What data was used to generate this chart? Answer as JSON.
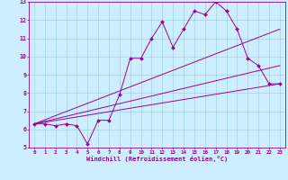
{
  "xlabel": "Windchill (Refroidissement éolien,°C)",
  "xlim": [
    -0.5,
    23.5
  ],
  "ylim": [
    5,
    13
  ],
  "xticks": [
    0,
    1,
    2,
    3,
    4,
    5,
    6,
    7,
    8,
    9,
    10,
    11,
    12,
    13,
    14,
    15,
    16,
    17,
    18,
    19,
    20,
    21,
    22,
    23
  ],
  "yticks": [
    5,
    6,
    7,
    8,
    9,
    10,
    11,
    12,
    13
  ],
  "background_color": "#cceeff",
  "line_color": "#990099",
  "grid_color": "#99cccc",
  "lines": [
    {
      "x": [
        0,
        1,
        2,
        3,
        4,
        5,
        6,
        7,
        8,
        9,
        10,
        11,
        12,
        13,
        14,
        15,
        16,
        17,
        18,
        19,
        20,
        21,
        22,
        23
      ],
      "y": [
        6.3,
        6.3,
        6.2,
        6.3,
        6.2,
        5.2,
        6.5,
        6.5,
        7.9,
        9.9,
        9.9,
        11.0,
        11.9,
        10.5,
        11.5,
        12.5,
        12.3,
        13.0,
        12.5,
        11.5,
        9.9,
        9.5,
        8.5,
        8.5
      ],
      "marker": true
    },
    {
      "x": [
        0,
        23
      ],
      "y": [
        6.3,
        8.5
      ],
      "marker": false
    },
    {
      "x": [
        0,
        23
      ],
      "y": [
        6.3,
        9.5
      ],
      "marker": false
    },
    {
      "x": [
        0,
        23
      ],
      "y": [
        6.3,
        11.5
      ],
      "marker": false
    }
  ],
  "figsize": [
    3.2,
    2.0
  ],
  "dpi": 100
}
